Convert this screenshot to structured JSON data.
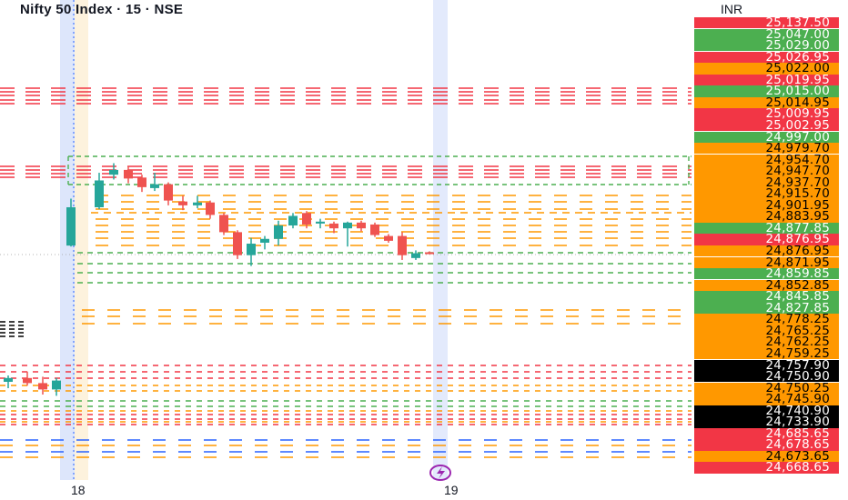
{
  "header": {
    "title": "Nifty 50 Index · 15 · NSE"
  },
  "axis": {
    "currency": "INR"
  },
  "x_axis": {
    "labels": [
      {
        "text": "18",
        "x": 90
      },
      {
        "text": "19",
        "x": 500
      }
    ]
  },
  "colors": {
    "green": "#4caf50",
    "red": "#f23645",
    "orange": "#ff9800",
    "black": "#000000",
    "candle_up": "#26a69a",
    "candle_down": "#ef5350",
    "blue": "#2962ff",
    "event": "#9c27b0"
  },
  "event_icon": "lightning-icon",
  "price_tags": [
    {
      "text": "25,137.50",
      "color": "red"
    },
    {
      "text": "25,047.00",
      "color": "green"
    },
    {
      "text": "25,029.00",
      "color": "green"
    },
    {
      "text": "25,026.95",
      "color": "red"
    },
    {
      "text": "25,022.00",
      "color": "orange"
    },
    {
      "text": "25,019.95",
      "color": "red"
    },
    {
      "text": "25,015.00",
      "color": "green"
    },
    {
      "text": "25,014.95",
      "color": "orange"
    },
    {
      "text": "25,009.95",
      "color": "red"
    },
    {
      "text": "25,002.95",
      "color": "red"
    },
    {
      "text": "24,997.00",
      "color": "green"
    },
    {
      "text": "24,979.70",
      "color": "orange"
    },
    {
      "text": "24,954.70",
      "color": "orange"
    },
    {
      "text": "24,947.70",
      "color": "orange"
    },
    {
      "text": "24,937.70",
      "color": "orange"
    },
    {
      "text": "24,915.70",
      "color": "orange"
    },
    {
      "text": "24,901.95",
      "color": "orange"
    },
    {
      "text": "24,883.95",
      "color": "orange"
    },
    {
      "text": "24,877.85",
      "color": "green"
    },
    {
      "text": "24,876.95",
      "color": "red"
    },
    {
      "text": "24,876.95",
      "color": "orange"
    },
    {
      "text": "24,871.95",
      "color": "orange"
    },
    {
      "text": "24,859.85",
      "color": "green"
    },
    {
      "text": "24,852.85",
      "color": "orange"
    },
    {
      "text": "24,845.85",
      "color": "green"
    },
    {
      "text": "24,827.85",
      "color": "green"
    },
    {
      "text": "24,778.25",
      "color": "orange"
    },
    {
      "text": "24,765.25",
      "color": "orange"
    },
    {
      "text": "24,762.25",
      "color": "orange"
    },
    {
      "text": "24,759.25",
      "color": "orange"
    },
    {
      "text": "24,757.90",
      "color": "black"
    },
    {
      "text": "24,750.90",
      "color": "black"
    },
    {
      "text": "24,750.25",
      "color": "orange"
    },
    {
      "text": "24,745.90",
      "color": "orange"
    },
    {
      "text": "24,740.90",
      "color": "black"
    },
    {
      "text": "24,733.90",
      "color": "black"
    },
    {
      "text": "24,685.65",
      "color": "red"
    },
    {
      "text": "24,678.65",
      "color": "red"
    },
    {
      "text": "24,673.65",
      "color": "orange"
    },
    {
      "text": "24,668.65",
      "color": "red"
    }
  ],
  "chart_data": {
    "type": "candlestick",
    "title": "Nifty 50 Index · 15 · NSE",
    "currency": "INR",
    "x_tick_labels": [
      "18",
      "19"
    ],
    "candles": [
      {
        "o": 24765,
        "h": 24770,
        "l": 24760,
        "c": 24768
      },
      {
        "o": 24768,
        "h": 24773,
        "l": 24762,
        "c": 24764
      },
      {
        "o": 24764,
        "h": 24769,
        "l": 24755,
        "c": 24759
      },
      {
        "o": 24759,
        "h": 24768,
        "l": 24754,
        "c": 24766
      },
      {
        "o": 24876,
        "h": 24925,
        "l": 24875,
        "c": 24916
      },
      {
        "o": 24916,
        "h": 24952,
        "l": 24914,
        "c": 24944
      },
      {
        "o": 24950,
        "h": 24962,
        "l": 24945,
        "c": 24955
      },
      {
        "o": 24955,
        "h": 24959,
        "l": 24941,
        "c": 24946
      },
      {
        "o": 24947,
        "h": 24950,
        "l": 24932,
        "c": 24937
      },
      {
        "o": 24936,
        "h": 24952,
        "l": 24933,
        "c": 24940
      },
      {
        "o": 24940,
        "h": 24942,
        "l": 24918,
        "c": 24923
      },
      {
        "o": 24922,
        "h": 24928,
        "l": 24913,
        "c": 24918
      },
      {
        "o": 24918,
        "h": 24928,
        "l": 24915,
        "c": 24921
      },
      {
        "o": 24921,
        "h": 24923,
        "l": 24904,
        "c": 24908
      },
      {
        "o": 24908,
        "h": 24910,
        "l": 24887,
        "c": 24890
      },
      {
        "o": 24890,
        "h": 24892,
        "l": 24862,
        "c": 24866
      },
      {
        "o": 24866,
        "h": 24884,
        "l": 24856,
        "c": 24878
      },
      {
        "o": 24879,
        "h": 24886,
        "l": 24872,
        "c": 24883
      },
      {
        "o": 24883,
        "h": 24902,
        "l": 24876,
        "c": 24897
      },
      {
        "o": 24897,
        "h": 24910,
        "l": 24894,
        "c": 24907
      },
      {
        "o": 24910,
        "h": 24912,
        "l": 24894,
        "c": 24898
      },
      {
        "o": 24899,
        "h": 24904,
        "l": 24894,
        "c": 24901
      },
      {
        "o": 24899,
        "h": 24901,
        "l": 24889,
        "c": 24894
      },
      {
        "o": 24894,
        "h": 24901,
        "l": 24875,
        "c": 24900
      },
      {
        "o": 24900,
        "h": 24902,
        "l": 24891,
        "c": 24894
      },
      {
        "o": 24898,
        "h": 24900,
        "l": 24885,
        "c": 24887
      },
      {
        "o": 24886,
        "h": 24888,
        "l": 24879,
        "c": 24881
      },
      {
        "o": 24886,
        "h": 24890,
        "l": 24861,
        "c": 24866
      },
      {
        "o": 24863,
        "h": 24871,
        "l": 24861,
        "c": 24868
      },
      {
        "o": 24869,
        "h": 24870,
        "l": 24867,
        "c": 24868
      }
    ]
  }
}
